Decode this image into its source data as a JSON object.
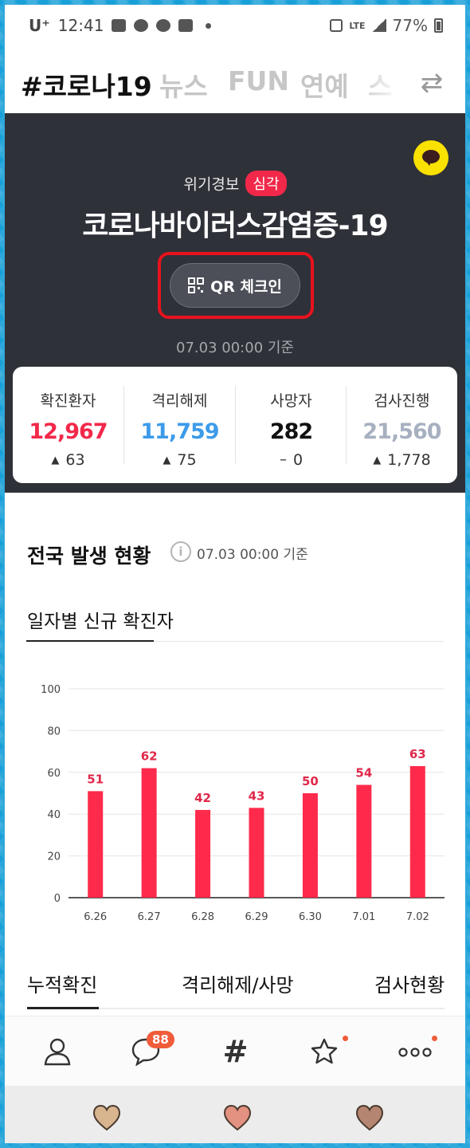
{
  "status_bar": {
    "carrier": "U⁺",
    "time": "12:41",
    "network": "LTE",
    "battery": "77%"
  },
  "tabs": [
    {
      "label": "#코로나19",
      "active": true
    },
    {
      "label": "뉴스",
      "active": false
    },
    {
      "label": "FUN",
      "active": false
    },
    {
      "label": "연예",
      "active": false
    },
    {
      "label": "스",
      "active": false
    }
  ],
  "hero": {
    "alert_label": "위기경보",
    "alert_level": "심각",
    "title": "코로나바이러스감염증-19",
    "qr_button": "QR 체크인",
    "timestamp": "07.03 00:00 기준"
  },
  "stats": [
    {
      "label": "확진환자",
      "value": "12,967",
      "delta": "63",
      "trend": "up",
      "color": "#f2284a"
    },
    {
      "label": "격리해제",
      "value": "11,759",
      "delta": "75",
      "trend": "up",
      "color": "#3d9be9"
    },
    {
      "label": "사망자",
      "value": "282",
      "delta": "0",
      "trend": "flat",
      "color": "#111111"
    },
    {
      "label": "검사진행",
      "value": "21,560",
      "delta": "1,778",
      "trend": "up",
      "color": "#a7b0c0"
    }
  ],
  "national": {
    "title": "전국 발생 현황",
    "timestamp": "07.03 00:00 기준",
    "subtitle": "일자별 신규 확진자"
  },
  "chart_data": {
    "type": "bar",
    "categories": [
      "6.26",
      "6.27",
      "6.28",
      "6.29",
      "6.30",
      "7.01",
      "7.02"
    ],
    "values": [
      51,
      62,
      42,
      43,
      50,
      54,
      63
    ],
    "ylim": [
      0,
      100
    ],
    "yticks": [
      0,
      20,
      40,
      60,
      80,
      100
    ],
    "grid": true,
    "bar_color": "#fe2a4c",
    "label_color": "#e0284a"
  },
  "bottom_tabs": [
    {
      "label": "누적확진",
      "active": true
    },
    {
      "label": "격리해제/사망",
      "active": false
    },
    {
      "label": "검사현황",
      "active": false
    }
  ],
  "bottom_nav": {
    "items": [
      "person-icon",
      "chat-icon",
      "hash-icon",
      "star-icon",
      "more-icon"
    ],
    "chat_badge": "88"
  }
}
